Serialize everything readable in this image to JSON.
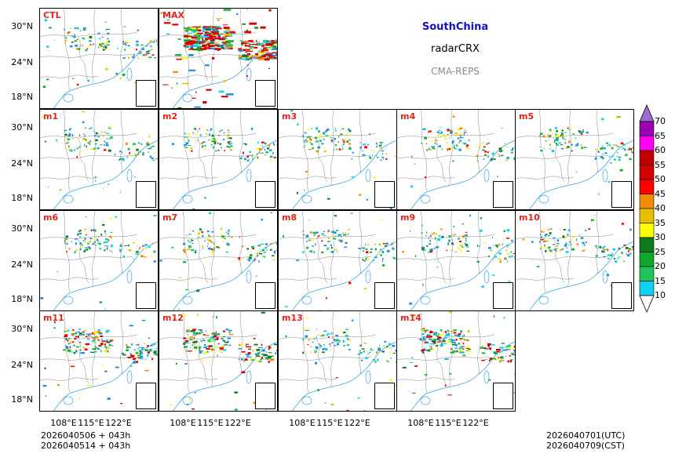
{
  "title": {
    "region": "SouthChina",
    "variable": "radarCRX",
    "model": "CMA-REPS"
  },
  "colors": {
    "region_title": "#1010c8",
    "model_title": "#8a8a8a",
    "panel_label": "#e0241b"
  },
  "panels": {
    "ctl": "CTL",
    "max": "MAX",
    "m1": "m1",
    "m2": "m2",
    "m3": "m3",
    "m4": "m4",
    "m5": "m5",
    "m6": "m6",
    "m7": "m7",
    "m8": "m8",
    "m9": "m9",
    "m10": "m10",
    "m11": "m11",
    "m12": "m12",
    "m13": "m13",
    "m14": "m14"
  },
  "axes": {
    "lat_ticks": [
      "30°N",
      "24°N",
      "18°N"
    ],
    "lon_ticks": [
      "108°E",
      "115°E",
      "122°E"
    ]
  },
  "colorbar": {
    "levels": [
      "10",
      "15",
      "20",
      "25",
      "30",
      "35",
      "40",
      "45",
      "50",
      "55",
      "60",
      "65",
      "70"
    ],
    "colors": [
      "#1f8fe6",
      "#0fd0ee",
      "#21c25a",
      "#0ea82b",
      "#0a7a1c",
      "#ffff00",
      "#e6c000",
      "#f08c00",
      "#ff0000",
      "#d40000",
      "#c00000",
      "#ff00f0",
      "#9a00b4",
      "#9b6fd0"
    ]
  },
  "footer": {
    "init_utc": "2026040506  +  043h",
    "init_cst": "2026040514  +  043h",
    "valid_utc": "2026040701(UTC)",
    "valid_cst": "2026040709(CST)"
  }
}
